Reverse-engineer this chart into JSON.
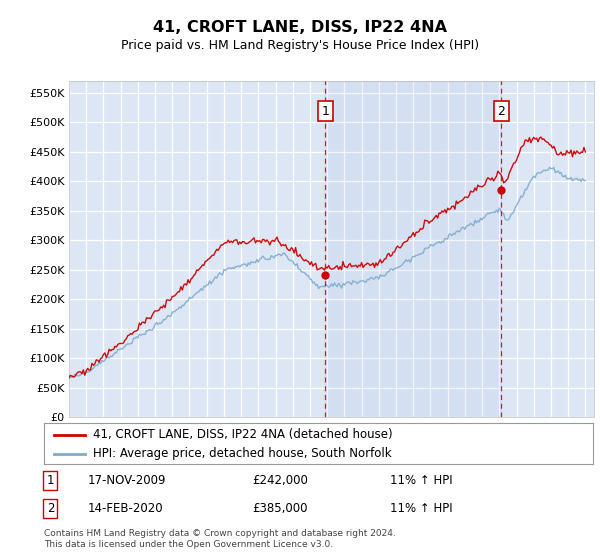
{
  "title": "41, CROFT LANE, DISS, IP22 4NA",
  "subtitle": "Price paid vs. HM Land Registry's House Price Index (HPI)",
  "ylabel_ticks": [
    "£0",
    "£50K",
    "£100K",
    "£150K",
    "£200K",
    "£250K",
    "£300K",
    "£350K",
    "£400K",
    "£450K",
    "£500K",
    "£550K"
  ],
  "ytick_values": [
    0,
    50000,
    100000,
    150000,
    200000,
    250000,
    300000,
    350000,
    400000,
    450000,
    500000,
    550000
  ],
  "ylim": [
    0,
    570000
  ],
  "xlim_start": 1995.0,
  "xlim_end": 2025.5,
  "plot_bg_color": "#dce6f5",
  "grid_color": "#ffffff",
  "sale1_x": 2009.88,
  "sale1_y": 242000,
  "sale2_x": 2020.12,
  "sale2_y": 385000,
  "sale1_date": "17-NOV-2009",
  "sale1_price": "£242,000",
  "sale1_hpi": "11% ↑ HPI",
  "sale2_date": "14-FEB-2020",
  "sale2_price": "£385,000",
  "sale2_hpi": "11% ↑ HPI",
  "legend_line1": "41, CROFT LANE, DISS, IP22 4NA (detached house)",
  "legend_line2": "HPI: Average price, detached house, South Norfolk",
  "footer": "Contains HM Land Registry data © Crown copyright and database right 2024.\nThis data is licensed under the Open Government Licence v3.0.",
  "line_color_red": "#cc0000",
  "line_color_blue": "#7faacc"
}
